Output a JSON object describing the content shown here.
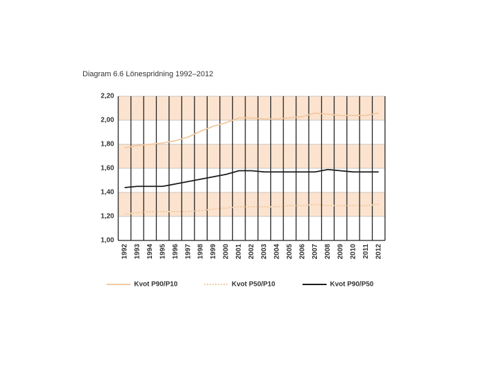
{
  "chart_data": {
    "type": "line",
    "title": "Diagram 6.6  Lönespridning 1992–2012",
    "categories": [
      "1992",
      "1993",
      "1994",
      "1995",
      "1996",
      "1997",
      "1998",
      "1999",
      "2000",
      "2001",
      "2002",
      "2003",
      "2004",
      "2005",
      "2006",
      "2007",
      "2008",
      "2009",
      "2010",
      "2011",
      "2012"
    ],
    "series": [
      {
        "name": "Kvot P90/P10",
        "color": "#f2c9a0",
        "style": "solid",
        "values": [
          1.77,
          1.79,
          1.8,
          1.81,
          1.83,
          1.86,
          1.91,
          1.95,
          1.98,
          2.02,
          2.02,
          2.01,
          2.01,
          2.02,
          2.03,
          2.06,
          2.05,
          2.04,
          2.04,
          2.04,
          2.06
        ]
      },
      {
        "name": "Kvot P50/P10",
        "color": "#f2c9a0",
        "style": "dotted",
        "values": [
          1.22,
          1.23,
          1.24,
          1.24,
          1.24,
          1.24,
          1.25,
          1.26,
          1.27,
          1.28,
          1.28,
          1.28,
          1.28,
          1.29,
          1.29,
          1.3,
          1.29,
          1.29,
          1.29,
          1.29,
          1.3
        ]
      },
      {
        "name": "Kvot P90/P50",
        "color": "#1a1a1a",
        "style": "solid",
        "values": [
          1.44,
          1.45,
          1.45,
          1.45,
          1.47,
          1.49,
          1.51,
          1.53,
          1.55,
          1.58,
          1.58,
          1.57,
          1.57,
          1.57,
          1.57,
          1.57,
          1.59,
          1.58,
          1.57,
          1.57,
          1.57
        ]
      }
    ],
    "ylim": [
      1.0,
      2.2
    ],
    "yticks": [
      {
        "value": 1.0,
        "label": "1,00"
      },
      {
        "value": 1.2,
        "label": "1,20"
      },
      {
        "value": 1.4,
        "label": "1,40"
      },
      {
        "value": 1.6,
        "label": "1,60"
      },
      {
        "value": 1.8,
        "label": "1,80"
      },
      {
        "value": 2.0,
        "label": "2,00"
      },
      {
        "value": 2.2,
        "label": "2,20"
      }
    ],
    "band_color": "#fbe3cf"
  }
}
